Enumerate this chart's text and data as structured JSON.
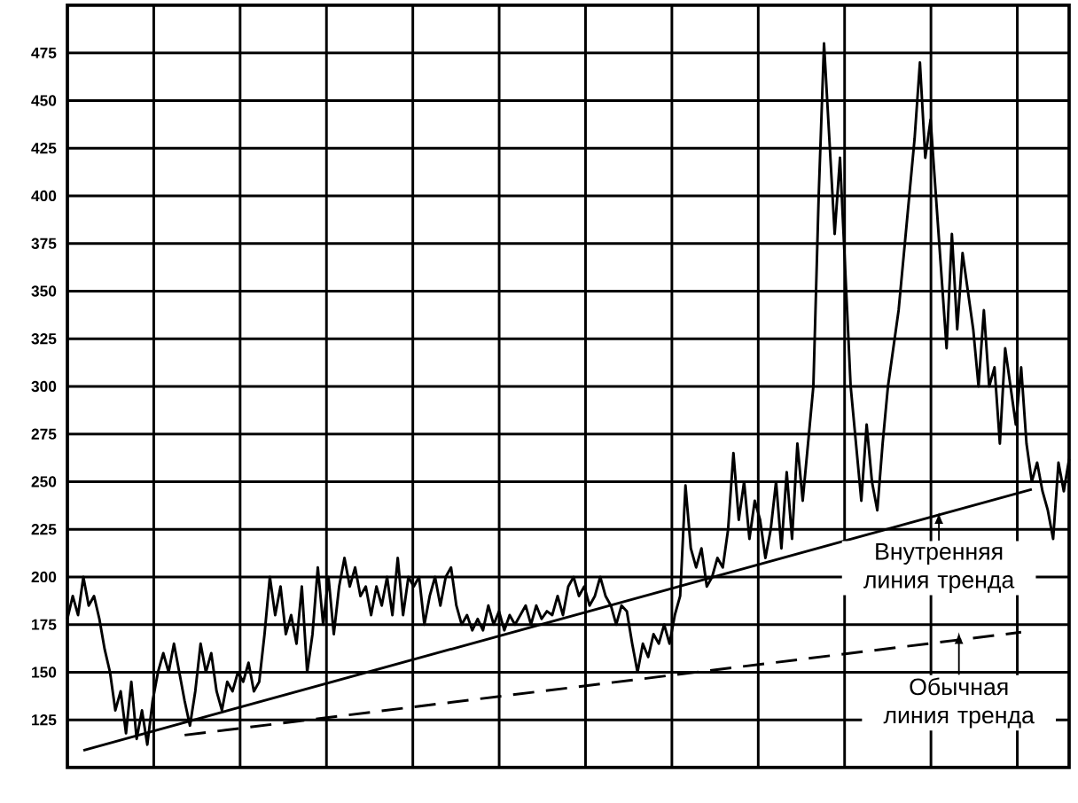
{
  "chart_data": {
    "type": "line",
    "ylim": [
      100,
      500
    ],
    "categories": [
      null,
      null,
      null,
      null,
      null,
      null,
      null,
      null,
      null,
      null,
      null,
      null,
      null,
      null,
      null,
      null,
      null,
      null,
      null,
      null,
      null,
      null,
      null,
      null,
      null,
      null,
      null,
      null,
      null,
      null,
      null,
      null,
      null,
      null,
      null,
      null,
      null,
      null,
      null,
      null,
      null,
      null,
      null,
      null,
      null,
      null,
      null,
      null,
      null,
      null,
      null,
      null,
      null,
      null,
      null,
      null,
      null,
      null,
      null,
      null,
      null,
      null,
      null,
      null,
      null,
      null,
      null,
      null,
      null,
      null,
      null,
      null,
      null,
      null,
      null,
      null,
      null,
      null,
      null,
      null,
      null,
      null,
      null,
      null,
      null,
      null,
      null,
      null,
      null,
      null,
      null,
      null,
      null,
      null,
      null,
      null,
      null,
      null,
      null,
      null,
      null,
      null,
      null,
      null,
      null,
      null,
      null,
      null,
      null,
      null,
      null,
      null,
      null,
      null,
      null,
      null,
      null,
      null,
      null,
      null,
      null,
      null,
      null,
      null,
      null,
      null,
      null,
      null,
      null,
      null,
      null,
      null,
      null,
      null,
      null,
      null,
      null,
      null,
      null,
      null,
      null,
      null,
      null,
      null,
      null,
      null,
      null,
      null,
      null,
      null,
      null,
      null,
      null,
      null,
      null,
      null,
      null,
      null,
      null,
      null,
      null,
      null,
      null,
      null,
      null,
      null,
      null,
      null,
      null,
      null,
      null,
      null,
      null,
      null,
      null,
      null,
      null,
      null,
      null,
      null,
      null,
      null,
      null,
      null,
      null,
      null,
      null,
      null,
      null
    ],
    "yticks": [
      125,
      150,
      175,
      200,
      225,
      250,
      275,
      300,
      325,
      350,
      375,
      400,
      425,
      450,
      475
    ],
    "grid": true,
    "marker": "none",
    "series": [
      {
        "color": "#000000",
        "line_style": "solid",
        "values": [
          178,
          190,
          180,
          200,
          185,
          190,
          178,
          162,
          150,
          130,
          140,
          118,
          145,
          115,
          130,
          112,
          135,
          150,
          160,
          150,
          165,
          150,
          135,
          122,
          140,
          165,
          150,
          160,
          140,
          130,
          145,
          140,
          150,
          145,
          155,
          140,
          145,
          170,
          200,
          180,
          195,
          170,
          180,
          165,
          195,
          150,
          170,
          205,
          175,
          200,
          170,
          195,
          210,
          195,
          205,
          190,
          195,
          180,
          195,
          185,
          200,
          180,
          210,
          180,
          200,
          195,
          200,
          175,
          190,
          200,
          185,
          200,
          205,
          185,
          175,
          180,
          172,
          178,
          172,
          185,
          175,
          182,
          172,
          180,
          175,
          180,
          185,
          175,
          185,
          178,
          182,
          180,
          190,
          180,
          195,
          200,
          190,
          195,
          185,
          190,
          200,
          190,
          185,
          175,
          185,
          182,
          165,
          150,
          165,
          158,
          170,
          165,
          175,
          165,
          180,
          190,
          248,
          215,
          205,
          215,
          195,
          200,
          210,
          205,
          225,
          265,
          230,
          250,
          220,
          240,
          230,
          210,
          225,
          250,
          215,
          255,
          220,
          270,
          240,
          270,
          300,
          400,
          480,
          430,
          380,
          420,
          360,
          300,
          270,
          240,
          280,
          250,
          235,
          270,
          300,
          320,
          340,
          370,
          400,
          430,
          470,
          420,
          440,
          400,
          360,
          320,
          380,
          330,
          370,
          350,
          330,
          300,
          340,
          300,
          310,
          270,
          320,
          300,
          280,
          310,
          270,
          250,
          260,
          245,
          235,
          220,
          260,
          245,
          262
        ]
      },
      {
        "color": "#000000",
        "line_style": "solid",
        "values": [
          null,
          null,
          null,
          109,
          null,
          null,
          null,
          null,
          null,
          null,
          null,
          null,
          null,
          null,
          null,
          null,
          null,
          null,
          null,
          null,
          null,
          null,
          null,
          null,
          null,
          null,
          null,
          null,
          null,
          null,
          null,
          null,
          null,
          null,
          null,
          null,
          null,
          null,
          null,
          null,
          null,
          null,
          null,
          null,
          null,
          null,
          null,
          null,
          null,
          null,
          null,
          null,
          null,
          null,
          null,
          null,
          null,
          null,
          null,
          null,
          null,
          null,
          null,
          null,
          null,
          null,
          null,
          null,
          null,
          null,
          null,
          null,
          null,
          null,
          null,
          null,
          null,
          null,
          null,
          null,
          null,
          null,
          null,
          null,
          null,
          null,
          null,
          null,
          null,
          null,
          null,
          null,
          null,
          null,
          null,
          null,
          null,
          null,
          null,
          null,
          null,
          null,
          null,
          null,
          null,
          null,
          null,
          null,
          null,
          null,
          null,
          null,
          null,
          null,
          null,
          null,
          null,
          null,
          null,
          null,
          null,
          null,
          null,
          null,
          null,
          null,
          null,
          null,
          null,
          null,
          null,
          null,
          null,
          null,
          null,
          null,
          null,
          null,
          null,
          null,
          null,
          null,
          null,
          null,
          null,
          null,
          null,
          null,
          null,
          null,
          null,
          null,
          null,
          null,
          null,
          null,
          null,
          null,
          null,
          null,
          null,
          null,
          null,
          null,
          null,
          null,
          null,
          null,
          null,
          null,
          null,
          null,
          null,
          null,
          null,
          null,
          null,
          null,
          null,
          null,
          null,
          246,
          null,
          null,
          null,
          null,
          null,
          null,
          null
        ]
      },
      {
        "color": "#000000",
        "line_style": "dashed",
        "values": [
          null,
          null,
          null,
          null,
          null,
          null,
          null,
          null,
          null,
          null,
          null,
          null,
          null,
          null,
          null,
          null,
          null,
          null,
          null,
          null,
          null,
          null,
          117,
          null,
          null,
          null,
          null,
          null,
          null,
          null,
          null,
          null,
          null,
          null,
          null,
          null,
          null,
          null,
          null,
          null,
          null,
          null,
          null,
          null,
          null,
          null,
          null,
          null,
          null,
          null,
          null,
          null,
          null,
          null,
          null,
          null,
          null,
          null,
          null,
          null,
          null,
          null,
          null,
          null,
          null,
          null,
          null,
          null,
          null,
          null,
          null,
          null,
          null,
          null,
          null,
          null,
          null,
          null,
          null,
          null,
          null,
          null,
          null,
          null,
          null,
          null,
          null,
          null,
          null,
          null,
          null,
          null,
          null,
          null,
          null,
          null,
          null,
          null,
          null,
          null,
          null,
          null,
          null,
          null,
          null,
          null,
          null,
          null,
          null,
          null,
          null,
          null,
          null,
          null,
          null,
          null,
          null,
          null,
          null,
          null,
          null,
          null,
          null,
          null,
          null,
          null,
          null,
          null,
          null,
          null,
          null,
          null,
          null,
          null,
          null,
          null,
          null,
          null,
          null,
          null,
          null,
          null,
          null,
          null,
          null,
          null,
          null,
          null,
          null,
          null,
          null,
          null,
          null,
          null,
          null,
          null,
          null,
          null,
          null,
          null,
          null,
          null,
          null,
          null,
          null,
          null,
          null,
          null,
          null,
          null,
          null,
          null,
          null,
          null,
          null,
          null,
          null,
          null,
          null,
          171,
          null,
          null,
          null,
          null,
          null,
          null,
          null,
          null,
          null
        ]
      }
    ],
    "annotations": [
      {
        "text": "Внутренняя линия тренда",
        "y": 234
      },
      {
        "text": "Обычная линия тренда",
        "y": 171
      }
    ]
  }
}
